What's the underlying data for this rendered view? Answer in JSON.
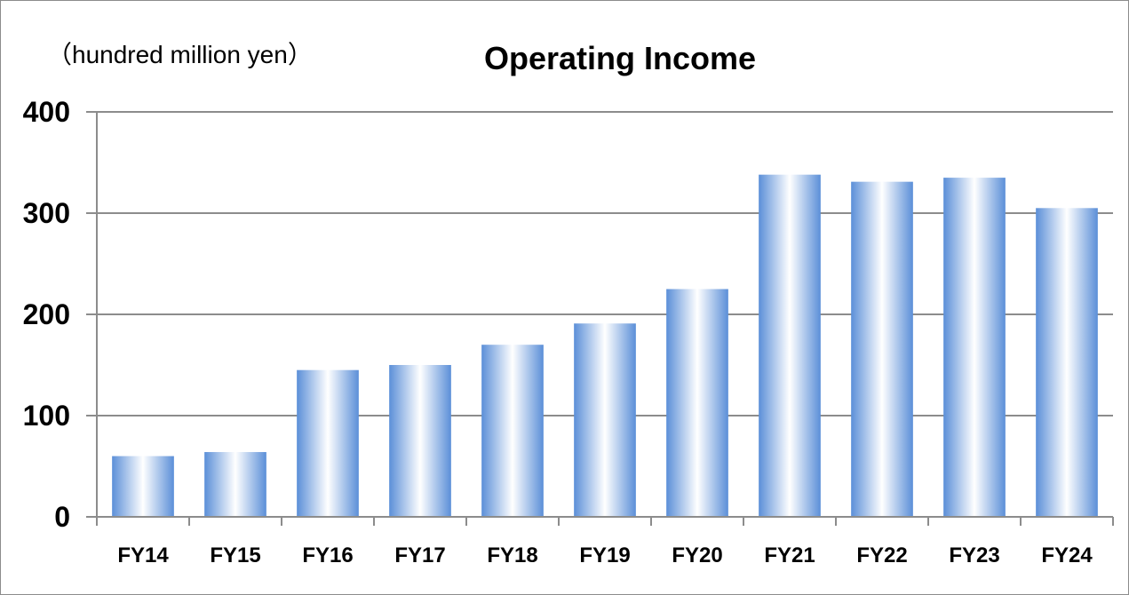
{
  "chart_data": {
    "type": "bar",
    "title": "Operating Income",
    "unit_label": "（hundred million yen）",
    "categories": [
      "FY14",
      "FY15",
      "FY16",
      "FY17",
      "FY18",
      "FY19",
      "FY20",
      "FY21",
      "FY22",
      "FY23",
      "FY24"
    ],
    "values": [
      60,
      64,
      145,
      150,
      170,
      191,
      225,
      338,
      331,
      335,
      305
    ],
    "ylim": [
      0,
      400
    ],
    "yticks": [
      0,
      100,
      200,
      300,
      400
    ],
    "grid": true,
    "bar_color": "#5b8fd8",
    "bar_highlight_color": "#ffffff"
  }
}
